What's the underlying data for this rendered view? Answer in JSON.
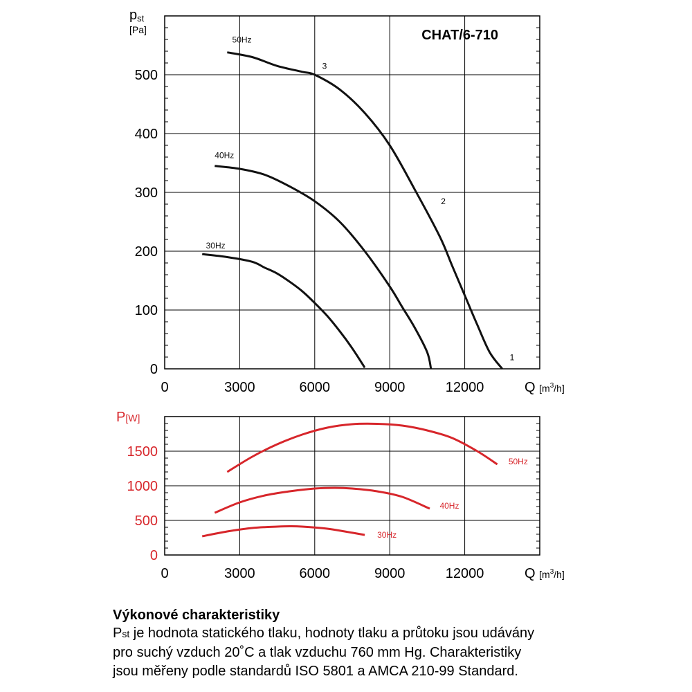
{
  "chart_data": [
    {
      "type": "line",
      "title": "CHAT/6-710",
      "ylabel_main": "p",
      "ylabel_sub": "st",
      "ylabel_unit": "[Pa]",
      "xlabel_main": "Q",
      "xlabel_unit_pre": "[m",
      "xlabel_unit_sup": "3",
      "xlabel_unit_post": "/h]",
      "xlim": [
        0,
        15000
      ],
      "ylim": [
        0,
        600
      ],
      "x_ticks": [
        0,
        3000,
        6000,
        9000,
        12000
      ],
      "y_ticks": [
        0,
        100,
        200,
        300,
        400,
        500
      ],
      "grid": true,
      "line_color": "#111111",
      "series": [
        {
          "name": "50Hz",
          "x": [
            2500,
            3500,
            4500,
            5500,
            6000,
            7000,
            8000,
            9000,
            10000,
            11000,
            11500,
            12000,
            12500,
            13000,
            13500
          ],
          "y": [
            538,
            530,
            515,
            505,
            500,
            475,
            435,
            380,
            305,
            225,
            175,
            125,
            75,
            28,
            0
          ]
        },
        {
          "name": "40Hz",
          "x": [
            2000,
            3000,
            4000,
            5000,
            6000,
            7000,
            8000,
            9000,
            9500,
            10000,
            10500,
            10650
          ],
          "y": [
            345,
            340,
            330,
            310,
            285,
            250,
            200,
            140,
            105,
            70,
            28,
            0
          ]
        },
        {
          "name": "30Hz",
          "x": [
            1500,
            2500,
            3500,
            4000,
            4500,
            5000,
            5500,
            6000,
            6500,
            7000,
            7500,
            8000
          ],
          "y": [
            195,
            190,
            182,
            172,
            162,
            148,
            132,
            112,
            90,
            64,
            35,
            2
          ]
        }
      ],
      "point_labels": [
        {
          "text": "3",
          "x": 6300,
          "y": 510
        },
        {
          "text": "2",
          "x": 11050,
          "y": 280
        },
        {
          "text": "1",
          "x": 13800,
          "y": 15
        }
      ],
      "series_labels": [
        {
          "text": "50Hz",
          "x": 2700,
          "y": 555
        },
        {
          "text": "40Hz",
          "x": 2000,
          "y": 358
        },
        {
          "text": "30Hz",
          "x": 1650,
          "y": 205
        }
      ]
    },
    {
      "type": "line",
      "ylabel_main": "P",
      "ylabel_unit": "[W]",
      "xlabel_main": "Q",
      "xlabel_unit_pre": "[m",
      "xlabel_unit_sup": "3",
      "xlabel_unit_post": "/h]",
      "xlim": [
        0,
        15000
      ],
      "ylim": [
        0,
        2000
      ],
      "x_ticks": [
        0,
        3000,
        6000,
        9000,
        12000
      ],
      "y_ticks": [
        0,
        500,
        1000,
        1500
      ],
      "grid": true,
      "line_color": "#d7262b",
      "series": [
        {
          "name": "50Hz",
          "x": [
            2500,
            3500,
            4500,
            5500,
            6500,
            7500,
            8500,
            9500,
            10500,
            11500,
            12500,
            13300
          ],
          "y": [
            1200,
            1420,
            1600,
            1740,
            1840,
            1890,
            1895,
            1870,
            1800,
            1690,
            1500,
            1310
          ]
        },
        {
          "name": "40Hz",
          "x": [
            2000,
            3000,
            4000,
            5000,
            6000,
            6800,
            7500,
            8500,
            9500,
            10600
          ],
          "y": [
            610,
            760,
            860,
            920,
            960,
            970,
            960,
            920,
            840,
            670
          ]
        },
        {
          "name": "30Hz",
          "x": [
            1500,
            2500,
            3500,
            4500,
            5000,
            5500,
            6500,
            7200,
            8000
          ],
          "y": [
            270,
            340,
            390,
            410,
            415,
            410,
            380,
            340,
            290
          ]
        }
      ],
      "series_labels": [
        {
          "text": "50Hz",
          "x": 13750,
          "y": 1310
        },
        {
          "text": "40Hz",
          "x": 11000,
          "y": 670
        },
        {
          "text": "30Hz",
          "x": 8500,
          "y": 250
        }
      ]
    }
  ],
  "caption": {
    "title": "Výkonové charakteristiky",
    "line1_sym": "P",
    "line1_sub": "st",
    "line1_rest": " je hodnota statického tlaku, hodnoty tlaku a průtoku jsou udávány",
    "line2": "pro suchý vzduch 20˚C a tlak vzduchu 760 mm Hg. Charakteristiky",
    "line3": "jsou měřeny podle standardů ISO 5801 a AMCA 210-99 Standard."
  }
}
